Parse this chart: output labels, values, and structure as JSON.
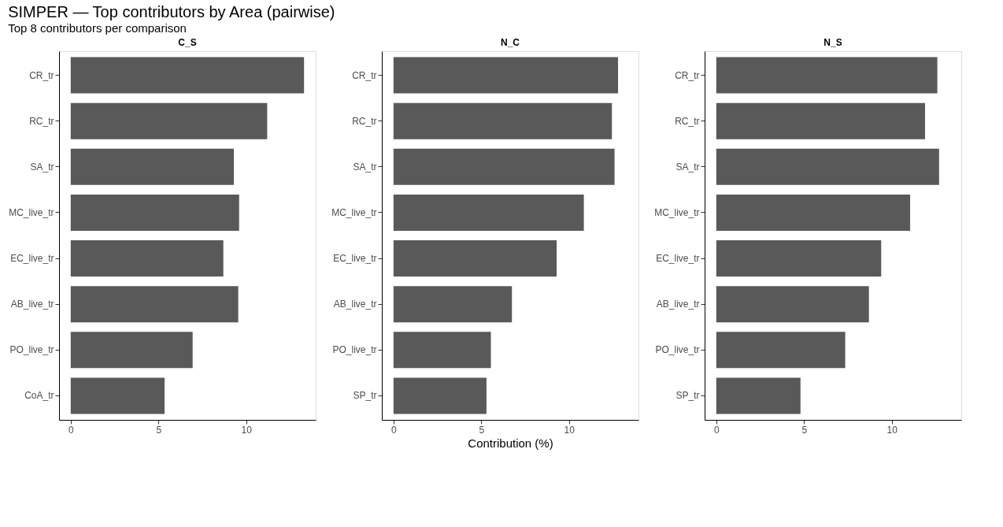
{
  "chart_data": [
    {
      "type": "bar",
      "orientation": "horizontal",
      "title": "C_S",
      "annotations": [
        "SIMPER — Top contributors by Area (pairwise)",
        "Top 8 contributors per comparison"
      ],
      "categories": [
        "CR_tr",
        "RC_tr",
        "SA_tr",
        "MC_live_tr",
        "EC_live_tr",
        "AB_live_tr",
        "PO_live_tr",
        "CoA_tr"
      ],
      "values": [
        13.3,
        11.2,
        9.3,
        9.6,
        8.7,
        9.55,
        6.95,
        5.35
      ],
      "color": "#595959",
      "xlim": [
        -0.665,
        13.965
      ],
      "xticks": [
        0,
        5,
        10
      ],
      "grid": false
    },
    {
      "type": "bar",
      "orientation": "horizontal",
      "title": "N_C",
      "xlabel": "Contribution (%)",
      "categories": [
        "CR_tr",
        "RC_tr",
        "SA_tr",
        "MC_live_tr",
        "EC_live_tr",
        "AB_live_tr",
        "PO_live_tr",
        "SP_tr"
      ],
      "values": [
        12.8,
        12.45,
        12.6,
        10.85,
        9.3,
        6.75,
        5.55,
        5.3
      ],
      "color": "#595959",
      "xlim": [
        -0.665,
        13.965
      ],
      "xticks": [
        0,
        5,
        10
      ],
      "grid": false
    },
    {
      "type": "bar",
      "orientation": "horizontal",
      "title": "N_S",
      "categories": [
        "CR_tr",
        "RC_tr",
        "SA_tr",
        "MC_live_tr",
        "EC_live_tr",
        "AB_live_tr",
        "PO_live_tr",
        "SP_tr"
      ],
      "values": [
        12.6,
        11.9,
        12.7,
        11.05,
        9.4,
        8.7,
        7.35,
        4.8
      ],
      "color": "#595959",
      "xlim": [
        -0.665,
        13.965
      ],
      "xticks": [
        0,
        5,
        10
      ],
      "grid": false
    }
  ]
}
